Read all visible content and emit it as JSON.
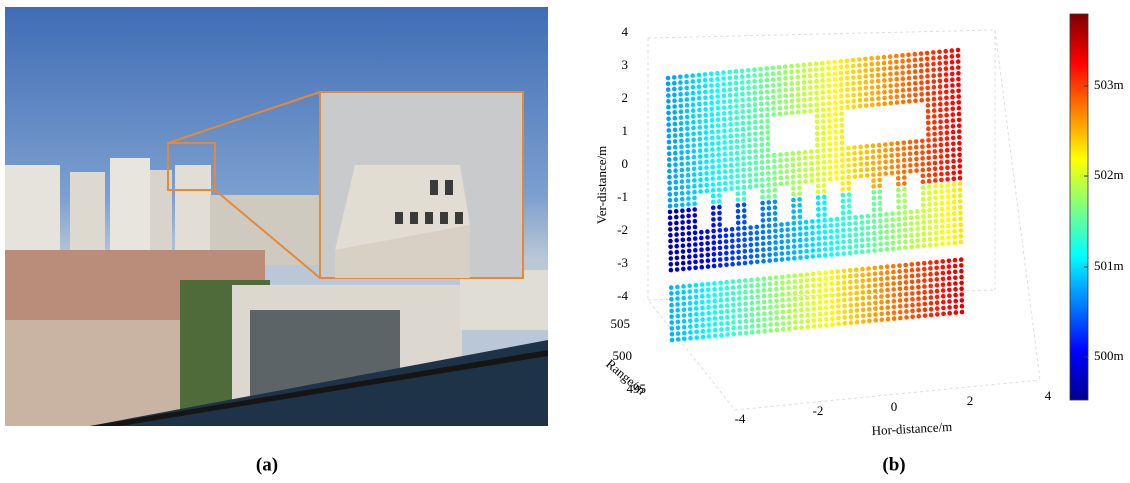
{
  "panels": [
    {
      "label": "(a)"
    },
    {
      "label": "(b)",
      "axes": {
        "z_label": "Ver-distance/m",
        "z_ticks": [
          "4",
          "3",
          "2",
          "1",
          "0",
          "-1",
          "-2",
          "-3",
          "-4"
        ],
        "y_label": "Range/m",
        "y_ticks": [
          "505",
          "500",
          "495"
        ],
        "x_label": "Hor-distance/m",
        "x_ticks": [
          "-4",
          "-2",
          "0",
          "2",
          "4"
        ]
      },
      "colorbar": {
        "ticks": [
          "503m",
          "502m",
          "501m",
          "500m"
        ]
      }
    }
  ]
}
